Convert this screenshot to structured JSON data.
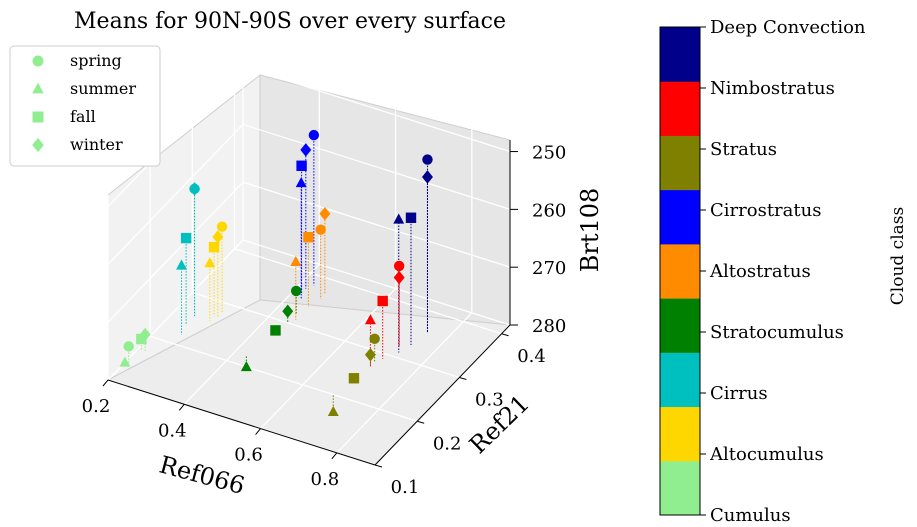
{
  "chart_data": {
    "type": "scatter",
    "projection": "3d",
    "title": "Means for 90N-90S over every surface",
    "axes": {
      "x": {
        "label": "Ref066",
        "ticks": [
          "0.2",
          "0.4",
          "0.6",
          "0.8"
        ],
        "range": [
          0.2,
          0.9
        ]
      },
      "y": {
        "label": "Ref21",
        "ticks": [
          "0.1",
          "0.2",
          "0.3",
          "0.4"
        ],
        "range": [
          0.1,
          0.42
        ]
      },
      "z": {
        "label": "Brt108",
        "ticks": [
          "250",
          "260",
          "270",
          "280"
        ],
        "range": [
          280,
          248
        ],
        "inverted": true
      }
    },
    "grid": true,
    "legend": {
      "placement": "top-left",
      "entries": [
        {
          "label": "spring",
          "marker": "circle"
        },
        {
          "label": "summer",
          "marker": "triangle"
        },
        {
          "label": "fall",
          "marker": "square"
        },
        {
          "label": "winter",
          "marker": "diamond"
        }
      ]
    },
    "colorbar": {
      "label": "Cloud class",
      "classes": [
        {
          "name": "Cumulus",
          "color": "#90ee90"
        },
        {
          "name": "Altocumulus",
          "color": "#ffd700"
        },
        {
          "name": "Cirrus",
          "color": "#00bfbf"
        },
        {
          "name": "Stratocumulus",
          "color": "#008000"
        },
        {
          "name": "Altostratus",
          "color": "#ff8c00"
        },
        {
          "name": "Cirrostratus",
          "color": "#0000ff"
        },
        {
          "name": "Stratus",
          "color": "#808000"
        },
        {
          "name": "Nimbostratus",
          "color": "#ff0000"
        },
        {
          "name": "Deep Convection",
          "color": "#00008b"
        }
      ]
    },
    "series": [
      {
        "name": "spring",
        "marker": "circle",
        "points": [
          {
            "cls": "Cumulus",
            "x": 0.21,
            "y": 0.14,
            "z": 277
          },
          {
            "cls": "Altocumulus",
            "x": 0.3,
            "y": 0.28,
            "z": 265
          },
          {
            "cls": "Cirrus",
            "x": 0.25,
            "y": 0.26,
            "z": 258
          },
          {
            "cls": "Stratocumulus",
            "x": 0.45,
            "y": 0.32,
            "z": 276
          },
          {
            "cls": "Altostratus",
            "x": 0.47,
            "y": 0.36,
            "z": 268
          },
          {
            "cls": "Cirrostratus",
            "x": 0.43,
            "y": 0.38,
            "z": 254
          },
          {
            "cls": "Stratus",
            "x": 0.7,
            "y": 0.28,
            "z": 276
          },
          {
            "cls": "Nimbostratus",
            "x": 0.72,
            "y": 0.32,
            "z": 266
          },
          {
            "cls": "Deep Convection",
            "x": 0.75,
            "y": 0.36,
            "z": 250
          }
        ]
      },
      {
        "name": "summer",
        "marker": "triangle",
        "points": [
          {
            "cls": "Cumulus",
            "x": 0.2,
            "y": 0.14,
            "z": 280
          },
          {
            "cls": "Altocumulus",
            "x": 0.29,
            "y": 0.26,
            "z": 270
          },
          {
            "cls": "Cirrus",
            "x": 0.26,
            "y": 0.22,
            "z": 268
          },
          {
            "cls": "Stratocumulus",
            "x": 0.43,
            "y": 0.22,
            "z": 282
          },
          {
            "cls": "Altostratus",
            "x": 0.46,
            "y": 0.31,
            "z": 270
          },
          {
            "cls": "Cirrostratus",
            "x": 0.43,
            "y": 0.35,
            "z": 260
          },
          {
            "cls": "Stratus",
            "x": 0.68,
            "y": 0.2,
            "z": 283
          },
          {
            "cls": "Nimbostratus",
            "x": 0.7,
            "y": 0.27,
            "z": 272
          },
          {
            "cls": "Deep Convection",
            "x": 0.73,
            "y": 0.31,
            "z": 257
          }
        ]
      },
      {
        "name": "fall",
        "marker": "square",
        "points": [
          {
            "cls": "Cumulus",
            "x": 0.21,
            "y": 0.17,
            "z": 278
          },
          {
            "cls": "Altocumulus",
            "x": 0.29,
            "y": 0.27,
            "z": 268
          },
          {
            "cls": "Cirrus",
            "x": 0.25,
            "y": 0.24,
            "z": 265
          },
          {
            "cls": "Stratocumulus",
            "x": 0.44,
            "y": 0.28,
            "z": 280
          },
          {
            "cls": "Altostratus",
            "x": 0.46,
            "y": 0.34,
            "z": 268
          },
          {
            "cls": "Cirrostratus",
            "x": 0.42,
            "y": 0.36,
            "z": 258
          },
          {
            "cls": "Stratus",
            "x": 0.69,
            "y": 0.24,
            "z": 280
          },
          {
            "cls": "Nimbostratus",
            "x": 0.71,
            "y": 0.29,
            "z": 270
          },
          {
            "cls": "Deep Convection",
            "x": 0.74,
            "y": 0.33,
            "z": 258
          }
        ]
      },
      {
        "name": "winter",
        "marker": "diamond",
        "points": [
          {
            "cls": "Cumulus",
            "x": 0.22,
            "y": 0.17,
            "z": 277
          },
          {
            "cls": "Altocumulus",
            "x": 0.3,
            "y": 0.27,
            "z": 266
          },
          {
            "cls": "Cirrus",
            "x": 0.25,
            "y": 0.26,
            "z": 258
          },
          {
            "cls": "Stratocumulus",
            "x": 0.45,
            "y": 0.3,
            "z": 278
          },
          {
            "cls": "Altostratus",
            "x": 0.47,
            "y": 0.37,
            "z": 266
          },
          {
            "cls": "Cirrostratus",
            "x": 0.42,
            "y": 0.37,
            "z": 256
          },
          {
            "cls": "Stratus",
            "x": 0.7,
            "y": 0.27,
            "z": 278
          },
          {
            "cls": "Nimbostratus",
            "x": 0.72,
            "y": 0.32,
            "z": 268
          },
          {
            "cls": "Deep Convection",
            "x": 0.75,
            "y": 0.36,
            "z": 253
          }
        ]
      }
    ]
  }
}
